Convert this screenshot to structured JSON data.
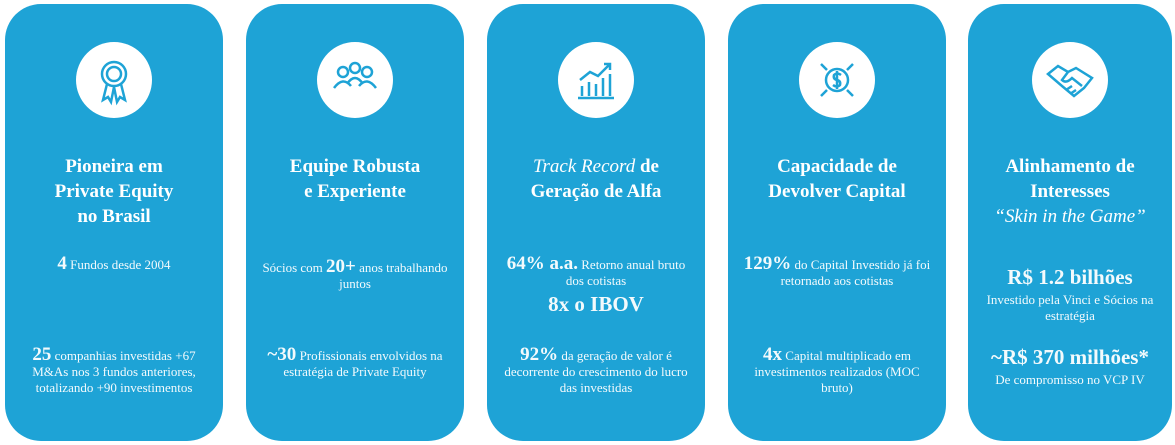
{
  "cards": [
    {
      "title": [
        "Pioneira em",
        "Private Equity",
        "no Brasil"
      ],
      "blocks": [
        [
          "4",
          " Fundos desde 2004"
        ],
        [
          "25",
          " companhias investidas +67 M&As nos 3 fundos anteriores, totalizando +90 investimentos"
        ]
      ]
    },
    {
      "title": [
        "Equipe Robusta",
        "e Experiente"
      ],
      "blocks": [
        [
          "Sócios com ",
          "20+",
          " anos trabalhando juntos"
        ],
        [
          "~30",
          " Profissionais envolvidos na estratégia de Private Equity"
        ]
      ]
    },
    {
      "title": [
        "Track Record",
        " de",
        "Geração de Alfa"
      ],
      "blocks": [
        [
          "64% a.a.",
          " Retorno anual bruto dos cotistas"
        ],
        [
          "8x o IBOV"
        ],
        [
          "92%",
          " da geração de valor é decorrente do crescimento do lucro das investidas"
        ]
      ]
    },
    {
      "title": [
        "Capacidade de",
        "Devolver Capital"
      ],
      "blocks": [
        [
          "129%",
          " do Capital Investido já foi retornado aos cotistas"
        ],
        [
          "4x",
          " Capital multiplicado em investimentos realizados (MOC bruto)"
        ]
      ]
    },
    {
      "title": [
        "Alinhamento de",
        "Interesses",
        "“Skin in the Game”"
      ],
      "blocks": [
        [
          "R$ 1.2 bilhões"
        ],
        [
          "Investido pela Vinci e Sócios na estratégia"
        ],
        [
          "~R$ 370 milhões*"
        ],
        [
          "De compromisso no VCP IV"
        ]
      ]
    }
  ]
}
